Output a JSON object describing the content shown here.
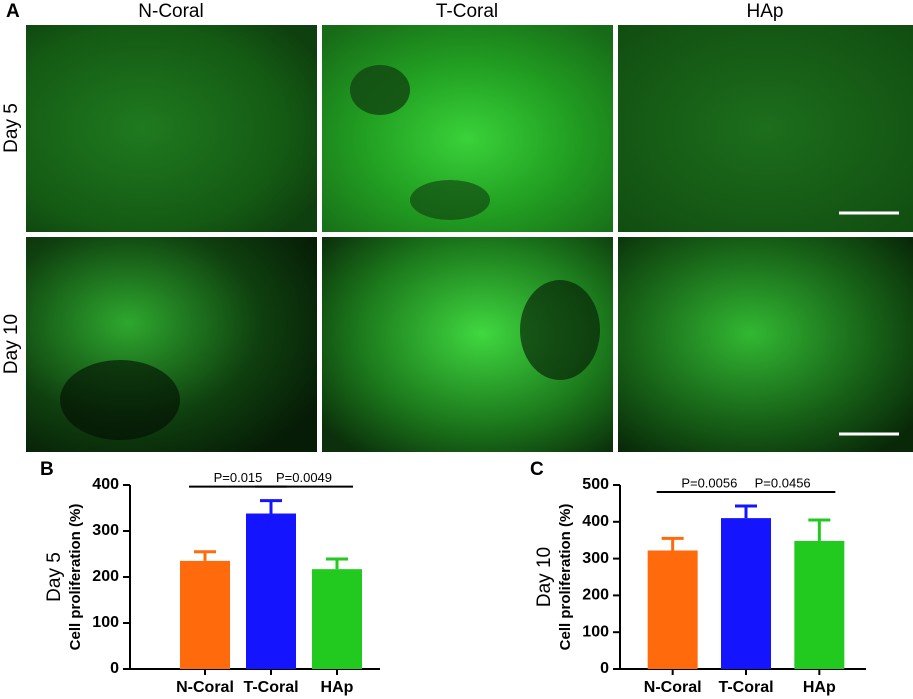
{
  "panel_a": {
    "label": "A",
    "columns": [
      "N-Coral",
      "T-Coral",
      "HAp"
    ],
    "rows": [
      "Day 5",
      "Day 10"
    ]
  },
  "chart_data": [
    {
      "type": "bar",
      "panel_label": "B",
      "side_label": "Day 5",
      "ylabel": "Cell proliferation (%)",
      "categories": [
        "N-Coral",
        "T-Coral",
        "HAp"
      ],
      "values": [
        235,
        338,
        217
      ],
      "errors": [
        20,
        28,
        22
      ],
      "colors": [
        "#ff6a0d",
        "#1414ff",
        "#22c91e"
      ],
      "ylim": [
        0,
        400
      ],
      "yticks": [
        0,
        100,
        200,
        300,
        400
      ],
      "annotations": [
        "P=0.015",
        "P=0.0049"
      ]
    },
    {
      "type": "bar",
      "panel_label": "C",
      "side_label": "Day 10",
      "ylabel": "Cell proliferation (%)",
      "categories": [
        "N-Coral",
        "T-Coral",
        "HAp"
      ],
      "values": [
        322,
        410,
        348
      ],
      "errors": [
        33,
        33,
        57
      ],
      "colors": [
        "#ff6a0d",
        "#1414ff",
        "#22c91e"
      ],
      "ylim": [
        0,
        500
      ],
      "yticks": [
        0,
        100,
        200,
        300,
        400,
        500
      ],
      "annotations": [
        "P=0.0056",
        "P=0.0456"
      ]
    }
  ]
}
